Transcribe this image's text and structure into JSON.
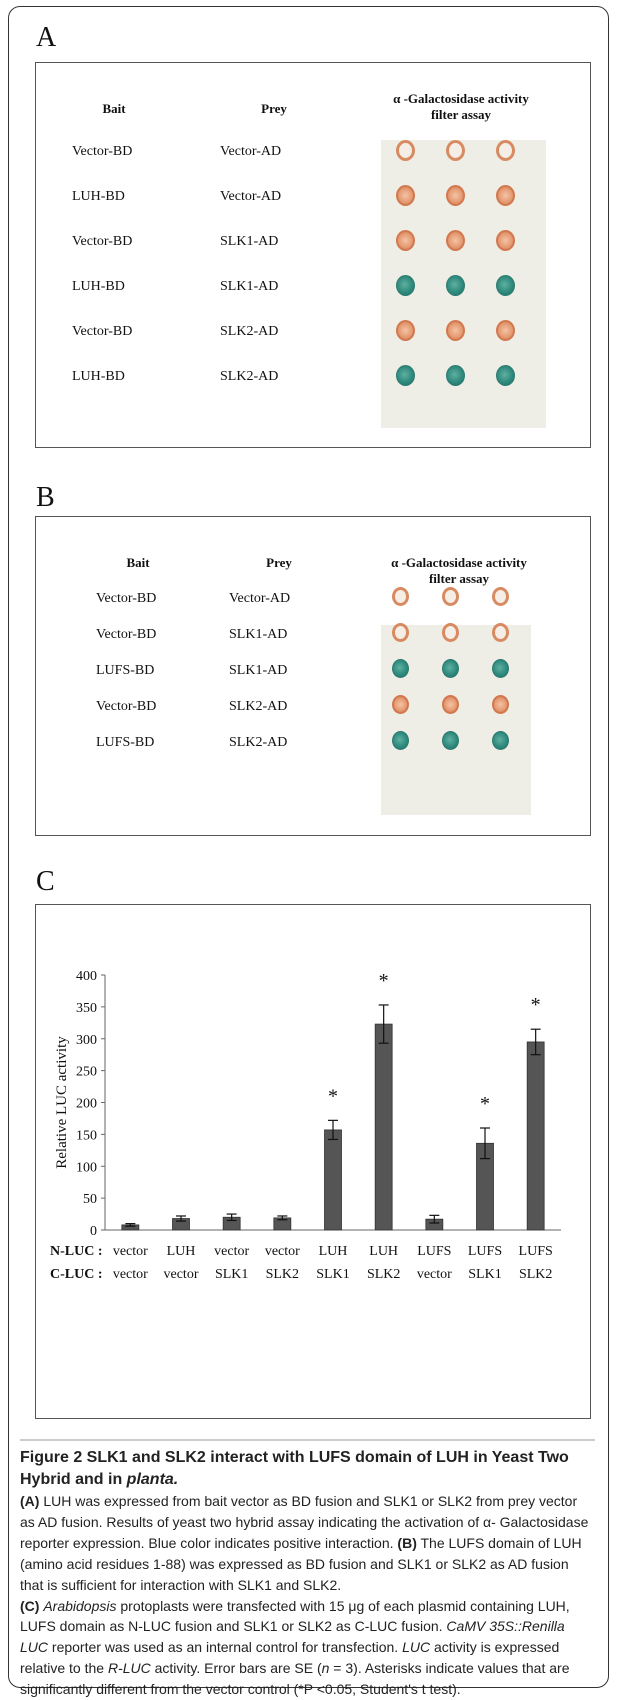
{
  "panelA": {
    "letter": "A",
    "headers": {
      "bait": "Bait",
      "prey": "Prey",
      "assay_line1": "α -Galactosidase activity",
      "assay_line2": "filter assay"
    },
    "rows": [
      {
        "bait": "Vector-BD",
        "prey": "Vector-AD",
        "spots": [
          "white-ring",
          "white-ring",
          "white-ring"
        ]
      },
      {
        "bait": "LUH-BD",
        "prey": "Vector-AD",
        "spots": [
          "orange",
          "orange",
          "orange"
        ]
      },
      {
        "bait": "Vector-BD",
        "prey": "SLK1-AD",
        "spots": [
          "orange",
          "orange",
          "orange"
        ]
      },
      {
        "bait": "LUH-BD",
        "prey": "SLK1-AD",
        "spots": [
          "blue",
          "blue",
          "blue"
        ]
      },
      {
        "bait": "Vector-BD",
        "prey": "SLK2-AD",
        "spots": [
          "orange",
          "orange",
          "orange"
        ]
      },
      {
        "bait": "LUH-BD",
        "prey": "SLK2-AD",
        "spots": [
          "blue",
          "blue",
          "blue"
        ]
      }
    ]
  },
  "panelB": {
    "letter": "B",
    "headers": {
      "bait": "Bait",
      "prey": "Prey",
      "assay_line1": "α -Galactosidase activity",
      "assay_line2": "filter assay"
    },
    "rows": [
      {
        "bait": "Vector-BD",
        "prey": "Vector-AD",
        "spots": [
          "white-ring",
          "white-ring",
          "white-ring"
        ]
      },
      {
        "bait": "Vector-BD",
        "prey": "SLK1-AD",
        "spots": [
          "white-ring",
          "white-ring",
          "white-ring"
        ]
      },
      {
        "bait": "LUFS-BD",
        "prey": "SLK1-AD",
        "spots": [
          "blue",
          "blue",
          "blue"
        ]
      },
      {
        "bait": "Vector-BD",
        "prey": "SLK2-AD",
        "spots": [
          "orange",
          "orange",
          "orange"
        ]
      },
      {
        "bait": "LUFS-BD",
        "prey": "SLK2-AD",
        "spots": [
          "blue",
          "blue",
          "blue"
        ]
      }
    ]
  },
  "panelC": {
    "letter": "C"
  },
  "chart_data": {
    "type": "bar",
    "ylabel": "Relative LUC activity",
    "ylim": [
      0,
      400
    ],
    "yticks": [
      0,
      50,
      100,
      150,
      200,
      250,
      300,
      350,
      400
    ],
    "row_labels": [
      "N-LUC :",
      "C-LUC :"
    ],
    "categories": [
      {
        "nluc": "vector",
        "cluc": "vector"
      },
      {
        "nluc": "LUH",
        "cluc": "vector"
      },
      {
        "nluc": "vector",
        "cluc": "SLK1"
      },
      {
        "nluc": "vector",
        "cluc": "SLK2"
      },
      {
        "nluc": "LUH",
        "cluc": "SLK1"
      },
      {
        "nluc": "LUH",
        "cluc": "SLK2"
      },
      {
        "nluc": "LUFS",
        "cluc": "vector"
      },
      {
        "nluc": "LUFS",
        "cluc": "SLK1"
      },
      {
        "nluc": "LUFS",
        "cluc": "SLK2"
      }
    ],
    "values": [
      8,
      18,
      20,
      19,
      157,
      323,
      17,
      136,
      295
    ],
    "errors": [
      2,
      4,
      5,
      3,
      15,
      30,
      6,
      24,
      20
    ],
    "significant": [
      false,
      false,
      false,
      false,
      true,
      true,
      false,
      true,
      true
    ],
    "significance_marker": "*",
    "bar_color": "#555555"
  },
  "caption": {
    "title": "Figure 2 SLK1 and SLK2 interact with LUFS domain of LUH in Yeast Two Hybrid and in ",
    "title_italic": "planta.",
    "a_label": "(A)",
    "a_text": " LUH was expressed from bait vector as BD fusion and SLK1 or SLK2 from prey vector as AD fusion. Results of yeast two hybrid assay indicating the activation of α- Galactosidase reporter expression. Blue color indicates positive interaction. ",
    "b_label": "(B)",
    "b_text": " The LUFS domain of LUH (amino acid residues 1-88) was expressed as BD fusion and SLK1 or SLK2 as AD fusion that is sufficient for interaction with SLK1 and SLK2.",
    "c_label": "(C)",
    "c_it1": "Arabidopsis",
    "c_text1": " protoplasts were transfected with 15 μg of each plasmid containing LUH, LUFS domain as N-LUC fusion and SLK1 or SLK2 as C-LUC fusion. ",
    "c_it2": "CaMV 35S::Renilla LUC",
    "c_text2": " reporter was used as an internal control for transfection. ",
    "c_it3": "LUC",
    "c_text3": " activity is expressed relative to the ",
    "c_it4": "R-LUC",
    "c_text4": " activity. Error bars are SE (",
    "c_it5": "n",
    "c_text5": " = 3). Asterisks indicate values that are significantly different from the vector control (*P <0.05, Student's t test)."
  }
}
